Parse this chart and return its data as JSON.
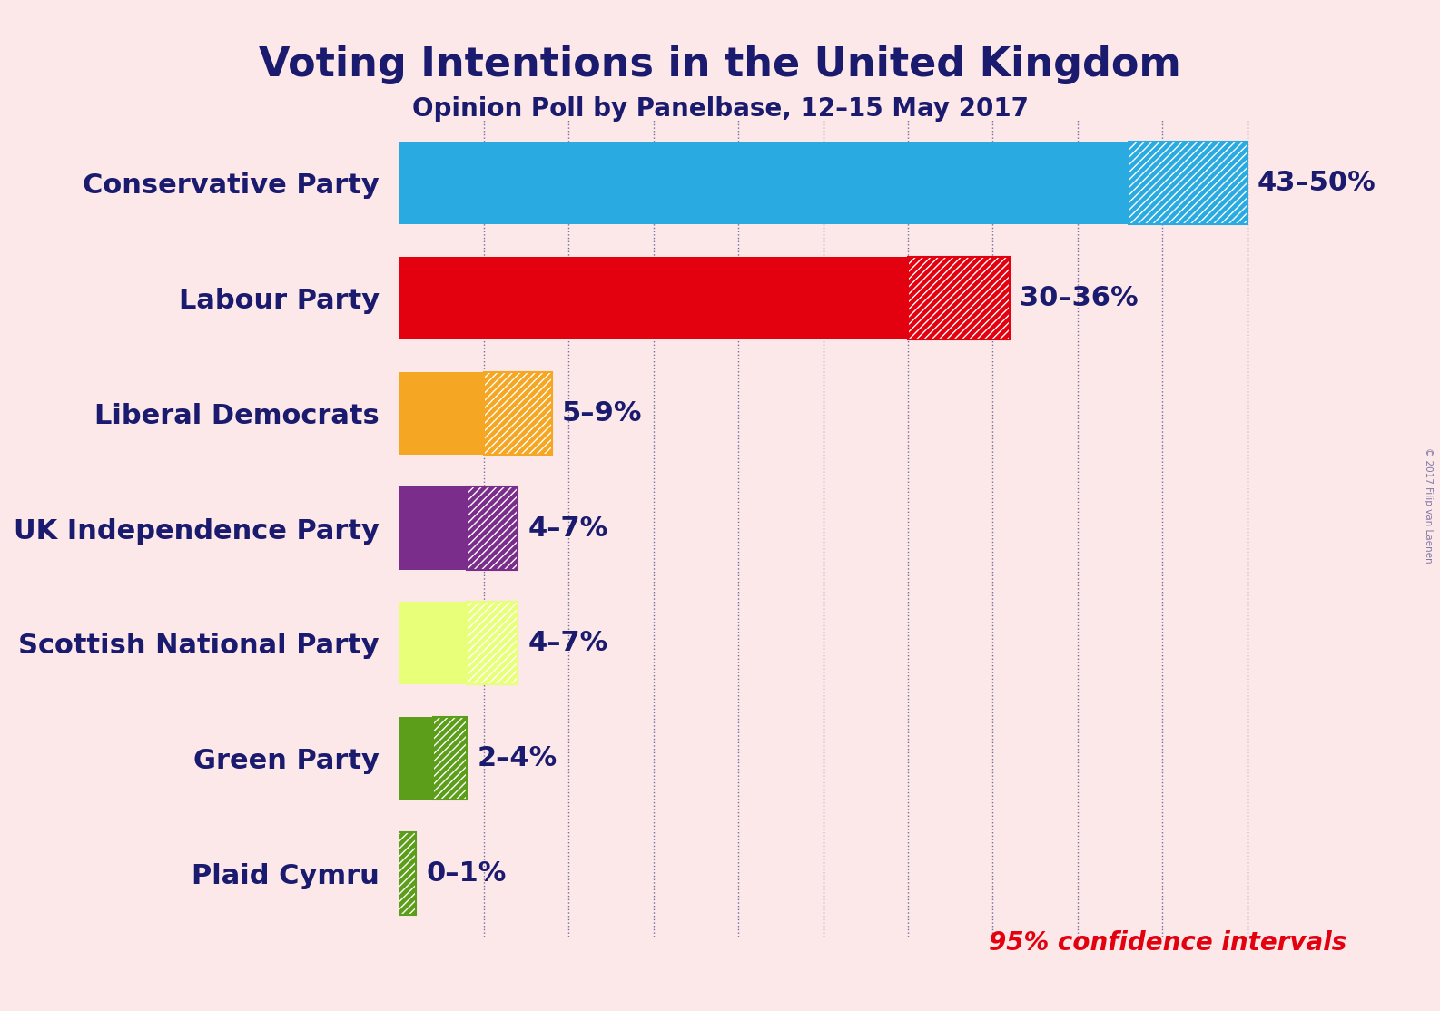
{
  "title": "Voting Intentions in the United Kingdom",
  "subtitle": "Opinion Poll by Panelbase, 12–15 May 2017",
  "watermark": "© 2017 Filip van Laenen",
  "bg_color": "#fce8e8",
  "text_color": "#1a1a6e",
  "parties": [
    "Conservative Party",
    "Labour Party",
    "Liberal Democrats",
    "UK Independence Party",
    "Scottish National Party",
    "Green Party",
    "Plaid Cymru"
  ],
  "low": [
    43,
    30,
    5,
    4,
    4,
    2,
    0
  ],
  "high": [
    50,
    36,
    9,
    7,
    7,
    4,
    1
  ],
  "colors": [
    "#29ABE2",
    "#E3000F",
    "#F5A623",
    "#7B2D8B",
    "#E8FF7A",
    "#5C9E1A",
    "#5C9E1A"
  ],
  "labels": [
    "43–50%",
    "30–36%",
    "5–9%",
    "4–7%",
    "4–7%",
    "2–4%",
    "0–1%"
  ],
  "xlim": [
    0,
    55
  ],
  "grid_values": [
    5,
    10,
    15,
    20,
    25,
    30,
    35,
    40,
    45,
    50
  ],
  "confidence_note": "95% confidence intervals",
  "confidence_color": "#E3000F",
  "bar_height": 0.72,
  "label_fontsize": 22,
  "party_fontsize": 22,
  "title_fontsize": 32,
  "subtitle_fontsize": 20
}
